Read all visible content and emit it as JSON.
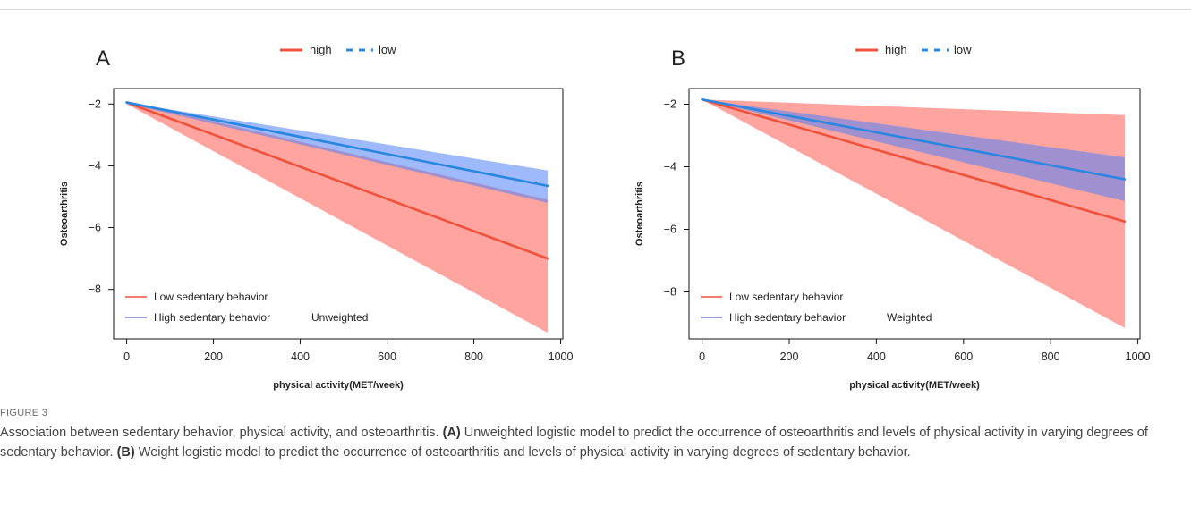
{
  "chart_data": [
    {
      "type": "line",
      "panel_label": "A",
      "xlabel": "physical activity(MET/week)",
      "ylabel": "Osteoarthritis",
      "xlim": [
        -30,
        1005
      ],
      "ylim": [
        -9.6,
        -1.5
      ],
      "xticks": [
        0,
        200,
        400,
        600,
        800,
        1000
      ],
      "yticks": [
        -2,
        -4,
        -6,
        -8
      ],
      "top_legend": [
        {
          "label": "high",
          "color": "#f0513a",
          "dash": "solid"
        },
        {
          "label": "low",
          "color": "#2b86e0",
          "dash": "dashed"
        }
      ],
      "inner_legend": [
        {
          "label": "Low sedentary behavior",
          "color": "#f0513a"
        },
        {
          "label": "High sedentary behavior",
          "color": "#7b7bd8"
        }
      ],
      "annotation": "Unweighted",
      "series": [
        {
          "name": "high",
          "color": "#f0513a",
          "x": [
            0,
            970
          ],
          "y": [
            -1.95,
            -7.0
          ],
          "band_upper": [
            -1.9,
            -5.1
          ],
          "band_lower": [
            -2.0,
            -9.4
          ]
        },
        {
          "name": "low",
          "color": "#2b86e0",
          "x": [
            0,
            970
          ],
          "y": [
            -1.95,
            -4.65
          ],
          "band_upper": [
            -1.95,
            -4.15
          ],
          "band_lower": [
            -1.98,
            -5.2
          ]
        }
      ]
    },
    {
      "type": "line",
      "panel_label": "B",
      "xlabel": "physical activity(MET/week)",
      "ylabel": "Osteoarthritis",
      "xlim": [
        -30,
        1005
      ],
      "ylim": [
        -9.5,
        -1.5
      ],
      "xticks": [
        0,
        200,
        400,
        600,
        800,
        1000
      ],
      "yticks": [
        -2,
        -4,
        -6,
        -8
      ],
      "top_legend": [
        {
          "label": "high",
          "color": "#f0513a",
          "dash": "solid"
        },
        {
          "label": "low",
          "color": "#2b86e0",
          "dash": "dashed"
        }
      ],
      "inner_legend": [
        {
          "label": "Low sedentary behavior",
          "color": "#f0513a"
        },
        {
          "label": "High sedentary behavior",
          "color": "#7b7bd8"
        }
      ],
      "annotation": "Weighted",
      "series": [
        {
          "name": "high",
          "color": "#f0513a",
          "x": [
            0,
            970
          ],
          "y": [
            -1.85,
            -5.75
          ],
          "band_upper": [
            -1.85,
            -2.35
          ],
          "band_lower": [
            -1.85,
            -9.15
          ]
        },
        {
          "name": "low",
          "color": "#2b86e0",
          "x": [
            0,
            970
          ],
          "y": [
            -1.85,
            -4.4
          ],
          "band_upper": [
            -1.85,
            -3.7
          ],
          "band_lower": [
            -1.85,
            -5.1
          ]
        }
      ]
    }
  ],
  "caption": {
    "figure_label": "FIGURE 3",
    "intro": "Association between sedentary behavior, physical activity, and osteoarthritis.",
    "a_tag": "(A)",
    "a_text": "Unweighted logistic model to predict the occurrence of osteoarthritis and levels of physical activity in varying degrees of sedentary behavior.",
    "b_tag": "(B)",
    "b_text": "Weight logistic model to predict the occurrence of osteoarthritis and levels of physical activity in varying degrees of sedentary behavior."
  }
}
